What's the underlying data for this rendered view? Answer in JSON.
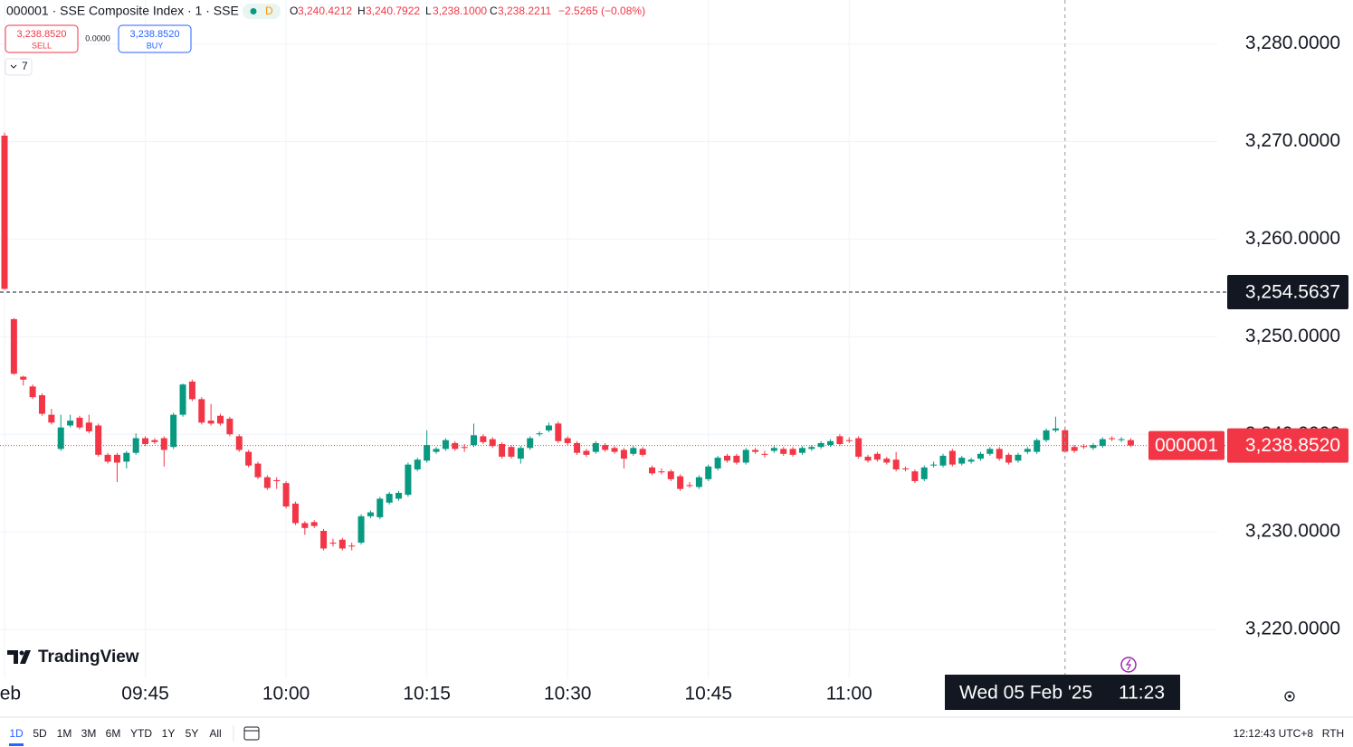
{
  "header": {
    "symbol": "000001 · SSE Composite Index · 1 · SSE",
    "status": "D",
    "ohlc": [
      {
        "key": "O",
        "value": "3,240.4212"
      },
      {
        "key": "H",
        "value": "3,240.7922"
      },
      {
        "key": "L",
        "value": "3,238.1000"
      },
      {
        "key": "C",
        "value": "3,238.2211"
      }
    ],
    "change": "−2.5265 (−0.08%)"
  },
  "trade": {
    "sell_price": "3,238.8520",
    "sell": "SELL",
    "spread": "0.0000",
    "buy_price": "3,238.8520",
    "buy": "BUY"
  },
  "indicators_count": "7",
  "logo": "TradingView",
  "toolbar": {
    "ranges": [
      "1D",
      "5D",
      "1M",
      "3M",
      "6M",
      "YTD",
      "1Y",
      "5Y",
      "All"
    ],
    "clock": "12:12:43 UTC+8",
    "session": "RTH"
  },
  "chart_data": {
    "type": "candlestick",
    "up_color": "#089981",
    "down_color": "#f23645",
    "grid": true,
    "x": [
      "09:30",
      "09:31",
      "09:32",
      "09:33",
      "09:34",
      "09:35",
      "09:36",
      "09:37",
      "09:38",
      "09:39",
      "09:40",
      "09:41",
      "09:42",
      "09:43",
      "09:44",
      "09:45",
      "09:46",
      "09:47",
      "09:48",
      "09:49",
      "09:50",
      "09:51",
      "09:52",
      "09:53",
      "09:54",
      "09:55",
      "09:56",
      "09:57",
      "09:58",
      "09:59",
      "10:00",
      "10:01",
      "10:02",
      "10:03",
      "10:04",
      "10:05",
      "10:06",
      "10:07",
      "10:08",
      "10:09",
      "10:10",
      "10:11",
      "10:12",
      "10:13",
      "10:14",
      "10:15",
      "10:16",
      "10:17",
      "10:18",
      "10:19",
      "10:20",
      "10:21",
      "10:22",
      "10:23",
      "10:24",
      "10:25",
      "10:26",
      "10:27",
      "10:28",
      "10:29",
      "10:30",
      "10:31",
      "10:32",
      "10:33",
      "10:34",
      "10:35",
      "10:36",
      "10:37",
      "10:38",
      "10:39",
      "10:40",
      "10:41",
      "10:42",
      "10:43",
      "10:44",
      "10:45",
      "10:46",
      "10:47",
      "10:48",
      "10:49",
      "10:50",
      "10:51",
      "10:52",
      "10:53",
      "10:54",
      "10:55",
      "10:56",
      "10:57",
      "10:58",
      "10:59",
      "11:00",
      "11:01",
      "11:02",
      "11:03",
      "11:04",
      "11:05",
      "11:06",
      "11:07",
      "11:08",
      "11:09",
      "11:10",
      "11:11",
      "11:12",
      "11:13",
      "11:14",
      "11:15",
      "11:16",
      "11:17",
      "11:18",
      "11:19",
      "11:20",
      "11:21",
      "11:22",
      "11:23",
      "11:24",
      "11:25",
      "11:26",
      "11:27",
      "11:28",
      "11:29",
      "11:30"
    ],
    "open": [
      3270.6,
      3251.8,
      3245.9,
      3244.9,
      3244.0,
      3242.0,
      3238.5,
      3240.9,
      3241.7,
      3241.2,
      3240.9,
      3237.9,
      3237.9,
      3237.2,
      3238.1,
      3239.6,
      3239.4,
      3239.6,
      3238.7,
      3242.0,
      3245.4,
      3243.6,
      3241.4,
      3241.9,
      3241.6,
      3239.8,
      3238.2,
      3237.0,
      3235.6,
      3235.3,
      3235.0,
      3232.9,
      3230.9,
      3231.0,
      3230.1,
      3228.9,
      3229.2,
      3228.6,
      3228.9,
      3231.6,
      3231.5,
      3233.0,
      3233.4,
      3233.8,
      3236.4,
      3237.3,
      3238.2,
      3238.5,
      3239.1,
      3238.7,
      3238.9,
      3239.8,
      3239.5,
      3239.0,
      3238.7,
      3237.5,
      3238.6,
      3240.0,
      3240.4,
      3241.1,
      3239.6,
      3239.1,
      3238.3,
      3238.2,
      3238.9,
      3238.6,
      3238.4,
      3238.0,
      3238.5,
      3236.6,
      3236.2,
      3236.2,
      3235.7,
      3234.8,
      3234.6,
      3235.4,
      3236.5,
      3237.8,
      3237.8,
      3237.1,
      3238.4,
      3238.0,
      3238.3,
      3238.5,
      3238.5,
      3238.1,
      3238.5,
      3238.7,
      3238.9,
      3239.8,
      3239.4,
      3239.6,
      3237.7,
      3238.0,
      3237.5,
      3237.4,
      3236.5,
      3236.2,
      3235.4,
      3236.8,
      3236.8,
      3238.3,
      3237.0,
      3237.2,
      3237.5,
      3238.0,
      3238.5,
      3237.9,
      3237.3,
      3238.2,
      3238.2,
      3239.4,
      3240.4,
      3240.4212,
      3238.7,
      3238.8,
      3238.6,
      3238.8,
      3239.6,
      3239.4,
      3239.4
    ],
    "high": [
      3270.9,
      3251.9,
      3246.0,
      3245.1,
      3244.2,
      3242.6,
      3242.0,
      3242.0,
      3241.9,
      3242.0,
      3241.1,
      3238.1,
      3238.1,
      3238.3,
      3240.1,
      3239.8,
      3239.6,
      3239.8,
      3242.2,
      3245.2,
      3245.6,
      3243.8,
      3243.1,
      3242.1,
      3241.8,
      3240.0,
      3238.4,
      3237.2,
      3235.8,
      3235.6,
      3235.2,
      3233.1,
      3231.1,
      3231.2,
      3230.3,
      3229.3,
      3229.4,
      3228.9,
      3231.8,
      3232.2,
      3233.6,
      3234.1,
      3234.2,
      3237.1,
      3237.6,
      3240.4,
      3238.7,
      3239.6,
      3239.3,
      3239.0,
      3241.1,
      3240.0,
      3239.7,
      3239.2,
      3238.9,
      3238.8,
      3239.8,
      3240.3,
      3241.2,
      3241.3,
      3239.8,
      3239.3,
      3238.5,
      3239.3,
      3239.1,
      3238.8,
      3238.6,
      3238.8,
      3238.7,
      3236.8,
      3236.5,
      3236.4,
      3235.9,
      3235.1,
      3235.8,
      3236.9,
      3237.8,
      3238.0,
      3238.0,
      3238.6,
      3238.6,
      3238.3,
      3238.8,
      3238.7,
      3238.7,
      3238.8,
      3238.9,
      3239.3,
      3239.5,
      3240.0,
      3239.7,
      3239.8,
      3237.9,
      3238.2,
      3237.7,
      3238.2,
      3236.7,
      3236.4,
      3236.8,
      3237.2,
      3238.0,
      3238.5,
      3237.8,
      3237.6,
      3238.2,
      3238.7,
      3238.7,
      3238.1,
      3238.1,
      3238.7,
      3239.6,
      3240.6,
      3241.8,
      3240.7922,
      3238.9,
      3239.0,
      3239.1,
      3239.7,
      3239.8,
      3239.7,
      3239.6
    ],
    "low": [
      3254.8,
      3246.1,
      3245.0,
      3243.6,
      3241.9,
      3241.0,
      3238.3,
      3240.7,
      3240.5,
      3240.1,
      3237.7,
      3237.0,
      3235.1,
      3236.5,
      3237.9,
      3238.8,
      3239.0,
      3236.7,
      3238.5,
      3241.8,
      3243.4,
      3241.0,
      3240.9,
      3240.9,
      3239.8,
      3238.2,
      3236.6,
      3235.4,
      3234.3,
      3234.4,
      3232.4,
      3230.7,
      3229.7,
      3230.4,
      3228.1,
      3228.5,
      3228.1,
      3228.1,
      3228.7,
      3231.4,
      3231.3,
      3232.8,
      3233.2,
      3233.6,
      3236.2,
      3237.1,
      3238.0,
      3238.3,
      3238.3,
      3238.2,
      3238.7,
      3239.0,
      3238.6,
      3237.5,
      3237.5,
      3237.0,
      3238.4,
      3239.8,
      3240.2,
      3239.1,
      3238.9,
      3237.9,
      3237.7,
      3238.0,
      3238.2,
      3238.0,
      3236.5,
      3237.8,
      3237.7,
      3235.8,
      3235.9,
      3235.2,
      3234.2,
      3234.5,
      3234.4,
      3235.2,
      3236.3,
      3237.1,
      3236.9,
      3236.9,
      3238.0,
      3237.6,
      3238.1,
      3237.8,
      3237.7,
      3237.9,
      3238.3,
      3238.5,
      3238.7,
      3238.8,
      3239.1,
      3237.5,
      3237.1,
      3237.2,
      3236.9,
      3236.2,
      3236.2,
      3235.0,
      3235.2,
      3236.6,
      3236.6,
      3236.7,
      3236.8,
      3237.0,
      3237.3,
      3237.8,
      3237.3,
      3236.9,
      3237.1,
      3238.0,
      3238.0,
      3239.2,
      3240.2,
      3238.1,
      3238.1,
      3238.5,
      3238.4,
      3238.6,
      3239.3,
      3239.2,
      3238.7
    ],
    "close": [
      3254.9,
      3246.2,
      3245.6,
      3243.8,
      3242.1,
      3241.2,
      3240.7,
      3241.4,
      3240.7,
      3240.3,
      3237.9,
      3237.2,
      3237.1,
      3238.1,
      3239.6,
      3239.0,
      3239.2,
      3238.4,
      3242.0,
      3245.1,
      3243.6,
      3241.2,
      3241.1,
      3241.1,
      3240.0,
      3238.4,
      3236.8,
      3235.6,
      3234.5,
      3235.2,
      3232.6,
      3230.9,
      3230.4,
      3230.6,
      3228.3,
      3228.8,
      3228.3,
      3228.5,
      3231.6,
      3232.0,
      3233.4,
      3233.9,
      3234.0,
      3236.9,
      3237.4,
      3238.9,
      3238.5,
      3239.4,
      3238.5,
      3238.6,
      3239.9,
      3239.2,
      3238.8,
      3237.7,
      3237.7,
      3238.6,
      3239.6,
      3240.1,
      3240.9,
      3239.3,
      3239.1,
      3238.1,
      3237.9,
      3239.1,
      3238.4,
      3238.2,
      3237.5,
      3238.6,
      3237.9,
      3236.0,
      3236.1,
      3235.4,
      3234.4,
      3234.7,
      3235.6,
      3236.7,
      3237.6,
      3237.3,
      3237.1,
      3238.4,
      3238.2,
      3237.9,
      3238.6,
      3238.0,
      3237.9,
      3238.6,
      3238.7,
      3239.1,
      3239.3,
      3239.0,
      3239.3,
      3237.7,
      3237.3,
      3237.4,
      3237.1,
      3236.4,
      3236.4,
      3235.2,
      3236.6,
      3236.9,
      3237.8,
      3236.9,
      3237.6,
      3237.4,
      3238.0,
      3238.5,
      3237.5,
      3237.1,
      3237.9,
      3238.5,
      3239.4,
      3240.4,
      3240.6,
      3238.2211,
      3238.3,
      3238.7,
      3238.9,
      3239.5,
      3239.5,
      3239.5,
      3238.852
    ],
    "ylim": [
      3215,
      3284.5
    ],
    "yticks": [
      {
        "value": 3220,
        "label": "3,220.0000"
      },
      {
        "value": 3230,
        "label": "3,230.0000"
      },
      {
        "value": 3240,
        "label": "3,240.0000"
      },
      {
        "value": 3250,
        "label": "3,250.0000"
      },
      {
        "value": 3260,
        "label": "3,260.0000"
      },
      {
        "value": 3270,
        "label": "3,270.0000"
      },
      {
        "value": 3280,
        "label": "3,280.0000"
      }
    ],
    "xticks": [
      {
        "value": "09:30",
        "label": "Feb"
      },
      "09:45",
      "10:00",
      "10:15",
      "10:30",
      "10:45",
      "11:00"
    ],
    "price_lines": [
      {
        "value": 3254.5637,
        "label": "3,254.5637",
        "color": "#131722"
      },
      {
        "value": 3238.852,
        "label": "3,238.8520",
        "symbol": "000001",
        "color": "#f23645"
      }
    ],
    "crosshair": {
      "x": "11:23",
      "label": "Wed 05 Feb '25"
    }
  }
}
